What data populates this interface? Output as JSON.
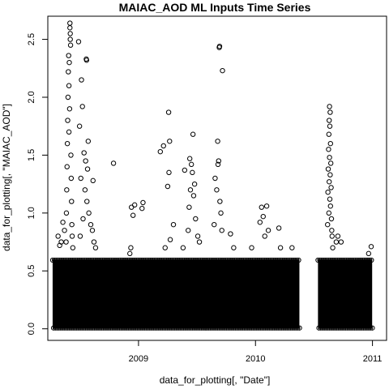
{
  "chart_data": {
    "type": "scatter",
    "title": "MAIAC_AOD ML Inputs Time Series",
    "xlabel": "data_for_plotting[, \"Date\"]",
    "ylabel": "data_for_plotting[, \"MAIAC_AOD\"]",
    "xlim": [
      "2008-03-24",
      "2011-02-14"
    ],
    "ylim": [
      -0.1,
      2.7
    ],
    "x_ticks": [
      {
        "value": "2009-01-01",
        "label": "2009"
      },
      {
        "value": "2010-01-01",
        "label": "2010"
      },
      {
        "value": "2011-01-01",
        "label": "2011"
      }
    ],
    "y_ticks": [
      {
        "value": 0.0,
        "label": "0.0"
      },
      {
        "value": 0.5,
        "label": "0.5"
      },
      {
        "value": 1.0,
        "label": "1.0"
      },
      {
        "value": 1.5,
        "label": "1.5"
      },
      {
        "value": 2.0,
        "label": "2.0"
      },
      {
        "value": 2.5,
        "label": "2.5"
      }
    ],
    "marker": "open-circle",
    "grid": false,
    "dense_band": [
      {
        "x_start": "2008-04-08",
        "x_end": "2010-05-18",
        "y_min": 0.0,
        "y_max": 0.6
      },
      {
        "x_start": "2010-07-15",
        "x_end": "2010-12-31",
        "y_min": 0.0,
        "y_max": 0.6
      }
    ],
    "points": [
      {
        "x": "2008-06-01",
        "y": 2.64
      },
      {
        "x": "2008-06-01",
        "y": 2.6
      },
      {
        "x": "2008-06-02",
        "y": 2.55
      },
      {
        "x": "2008-06-02",
        "y": 2.5
      },
      {
        "x": "2008-06-03",
        "y": 2.45
      },
      {
        "x": "2008-05-28",
        "y": 2.36
      },
      {
        "x": "2008-05-30",
        "y": 2.3
      },
      {
        "x": "2008-05-27",
        "y": 2.22
      },
      {
        "x": "2008-05-29",
        "y": 2.1
      },
      {
        "x": "2008-05-26",
        "y": 2.0
      },
      {
        "x": "2008-05-31",
        "y": 1.9
      },
      {
        "x": "2008-05-25",
        "y": 1.8
      },
      {
        "x": "2008-05-29",
        "y": 1.7
      },
      {
        "x": "2008-05-24",
        "y": 1.6
      },
      {
        "x": "2008-06-04",
        "y": 1.5
      },
      {
        "x": "2008-05-23",
        "y": 1.4
      },
      {
        "x": "2008-06-05",
        "y": 1.3
      },
      {
        "x": "2008-05-22",
        "y": 1.2
      },
      {
        "x": "2008-06-06",
        "y": 1.1
      },
      {
        "x": "2008-05-21",
        "y": 1.0
      },
      {
        "x": "2008-06-07",
        "y": 0.9
      },
      {
        "x": "2008-06-08",
        "y": 0.8
      },
      {
        "x": "2008-05-20",
        "y": 0.75
      },
      {
        "x": "2008-06-10",
        "y": 0.7
      },
      {
        "x": "2008-06-28",
        "y": 2.48
      },
      {
        "x": "2008-07-07",
        "y": 2.15
      },
      {
        "x": "2008-07-10",
        "y": 1.92
      },
      {
        "x": "2008-07-22",
        "y": 2.33
      },
      {
        "x": "2008-07-23",
        "y": 2.32
      },
      {
        "x": "2008-07-01",
        "y": 1.75
      },
      {
        "x": "2008-07-28",
        "y": 1.62
      },
      {
        "x": "2008-07-15",
        "y": 1.52
      },
      {
        "x": "2008-07-20",
        "y": 1.45
      },
      {
        "x": "2008-07-26",
        "y": 1.38
      },
      {
        "x": "2008-07-05",
        "y": 1.3
      },
      {
        "x": "2008-07-18",
        "y": 1.2
      },
      {
        "x": "2008-07-24",
        "y": 1.1
      },
      {
        "x": "2008-07-30",
        "y": 1.0
      },
      {
        "x": "2008-07-12",
        "y": 0.95
      },
      {
        "x": "2008-08-05",
        "y": 0.9
      },
      {
        "x": "2008-08-12",
        "y": 1.28
      },
      {
        "x": "2008-08-10",
        "y": 0.85
      },
      {
        "x": "2008-07-03",
        "y": 0.8
      },
      {
        "x": "2008-08-15",
        "y": 0.75
      },
      {
        "x": "2008-08-20",
        "y": 0.7
      },
      {
        "x": "2008-05-10",
        "y": 0.92
      },
      {
        "x": "2008-05-05",
        "y": 0.75
      },
      {
        "x": "2008-04-25",
        "y": 0.8
      },
      {
        "x": "2008-05-15",
        "y": 0.85
      },
      {
        "x": "2008-04-30",
        "y": 0.72
      },
      {
        "x": "2008-10-15",
        "y": 1.43
      },
      {
        "x": "2008-12-10",
        "y": 1.05
      },
      {
        "x": "2008-12-15",
        "y": 0.98
      },
      {
        "x": "2008-12-20",
        "y": 1.07
      },
      {
        "x": "2009-01-12",
        "y": 1.04
      },
      {
        "x": "2009-01-15",
        "y": 1.09
      },
      {
        "x": "2008-12-08",
        "y": 0.7
      },
      {
        "x": "2008-12-05",
        "y": 0.65
      },
      {
        "x": "2009-03-10",
        "y": 1.53
      },
      {
        "x": "2009-03-20",
        "y": 1.58
      },
      {
        "x": "2009-04-05",
        "y": 1.87
      },
      {
        "x": "2009-04-08",
        "y": 1.62
      },
      {
        "x": "2009-04-06",
        "y": 1.35
      },
      {
        "x": "2009-04-02",
        "y": 1.23
      },
      {
        "x": "2009-04-20",
        "y": 0.9
      },
      {
        "x": "2009-04-10",
        "y": 0.77
      },
      {
        "x": "2009-03-25",
        "y": 0.7
      },
      {
        "x": "2009-05-25",
        "y": 1.37
      },
      {
        "x": "2009-06-20",
        "y": 1.68
      },
      {
        "x": "2009-06-10",
        "y": 1.47
      },
      {
        "x": "2009-06-15",
        "y": 1.42
      },
      {
        "x": "2009-06-18",
        "y": 1.35
      },
      {
        "x": "2009-06-25",
        "y": 1.25
      },
      {
        "x": "2009-06-12",
        "y": 1.2
      },
      {
        "x": "2009-06-22",
        "y": 1.15
      },
      {
        "x": "2009-06-08",
        "y": 1.05
      },
      {
        "x": "2009-06-28",
        "y": 0.95
      },
      {
        "x": "2009-06-05",
        "y": 0.85
      },
      {
        "x": "2009-07-05",
        "y": 0.8
      },
      {
        "x": "2009-07-10",
        "y": 0.75
      },
      {
        "x": "2009-05-20",
        "y": 0.7
      },
      {
        "x": "2009-09-10",
        "y": 2.43
      },
      {
        "x": "2009-09-11",
        "y": 2.44
      },
      {
        "x": "2009-09-20",
        "y": 2.23
      },
      {
        "x": "2009-09-05",
        "y": 1.62
      },
      {
        "x": "2009-09-08",
        "y": 1.45
      },
      {
        "x": "2009-09-06",
        "y": 1.42
      },
      {
        "x": "2009-08-28",
        "y": 1.3
      },
      {
        "x": "2009-09-02",
        "y": 1.2
      },
      {
        "x": "2009-09-12",
        "y": 1.1
      },
      {
        "x": "2009-09-15",
        "y": 1.0
      },
      {
        "x": "2009-08-25",
        "y": 0.9
      },
      {
        "x": "2009-09-18",
        "y": 0.85
      },
      {
        "x": "2009-10-15",
        "y": 0.82
      },
      {
        "x": "2009-10-25",
        "y": 0.7
      },
      {
        "x": "2010-01-20",
        "y": 1.05
      },
      {
        "x": "2010-02-05",
        "y": 1.06
      },
      {
        "x": "2010-01-25",
        "y": 0.97
      },
      {
        "x": "2010-01-15",
        "y": 0.92
      },
      {
        "x": "2010-02-10",
        "y": 0.85
      },
      {
        "x": "2010-01-30",
        "y": 0.8
      },
      {
        "x": "2009-12-20",
        "y": 0.7
      },
      {
        "x": "2010-03-15",
        "y": 0.87
      },
      {
        "x": "2010-03-20",
        "y": 0.7
      },
      {
        "x": "2010-04-25",
        "y": 0.7
      },
      {
        "x": "2010-08-20",
        "y": 1.92
      },
      {
        "x": "2010-08-22",
        "y": 1.87
      },
      {
        "x": "2010-08-19",
        "y": 1.8
      },
      {
        "x": "2010-08-21",
        "y": 1.75
      },
      {
        "x": "2010-08-18",
        "y": 1.68
      },
      {
        "x": "2010-08-23",
        "y": 1.6
      },
      {
        "x": "2010-08-17",
        "y": 1.55
      },
      {
        "x": "2010-08-20",
        "y": 1.48
      },
      {
        "x": "2010-08-24",
        "y": 1.43
      },
      {
        "x": "2010-08-16",
        "y": 1.38
      },
      {
        "x": "2010-08-22",
        "y": 1.33
      },
      {
        "x": "2010-08-19",
        "y": 1.27
      },
      {
        "x": "2010-08-25",
        "y": 1.22
      },
      {
        "x": "2010-08-15",
        "y": 1.18
      },
      {
        "x": "2010-08-21",
        "y": 1.12
      },
      {
        "x": "2010-08-23",
        "y": 1.06
      },
      {
        "x": "2010-08-18",
        "y": 1.0
      },
      {
        "x": "2010-08-26",
        "y": 0.95
      },
      {
        "x": "2010-08-14",
        "y": 0.9
      },
      {
        "x": "2010-08-27",
        "y": 0.85
      },
      {
        "x": "2010-08-28",
        "y": 0.8
      },
      {
        "x": "2010-09-15",
        "y": 0.8
      },
      {
        "x": "2010-09-10",
        "y": 0.75
      },
      {
        "x": "2010-08-30",
        "y": 0.7
      },
      {
        "x": "2010-09-25",
        "y": 0.75
      },
      {
        "x": "2010-12-28",
        "y": 0.71
      },
      {
        "x": "2010-12-20",
        "y": 0.65
      }
    ]
  }
}
